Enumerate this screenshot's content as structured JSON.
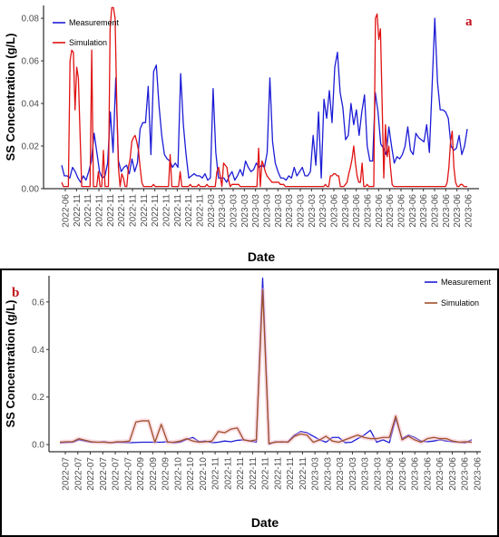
{
  "chart_data": [
    {
      "type": "line",
      "panel_label": "a",
      "xlabel": "Date",
      "ylabel": "SS Concentration (g/L)",
      "ylim": [
        0,
        0.086
      ],
      "yticks": [
        "0.00",
        "0.02",
        "0.04",
        "0.06",
        "0.08"
      ],
      "ytick_values": [
        0,
        0.02,
        0.04,
        0.06,
        0.08
      ],
      "x_tick_labels": [
        "2022-06",
        "2022-11",
        "2022-11",
        "2022-11",
        "2022-11",
        "2022-11",
        "2022-11",
        "2022-11",
        "2022-11",
        "2022-11",
        "2022-11",
        "2022-11",
        "2022-11",
        "2023-03",
        "2023-03",
        "2023-03",
        "2023-03",
        "2023-03",
        "2023-03",
        "2023-03",
        "2023-03",
        "2023-03",
        "2023-03",
        "2023-03",
        "2023-06",
        "2023-06",
        "2023-06",
        "2023-06",
        "2023-06",
        "2023-06",
        "2023-06",
        "2023-06",
        "2023-06",
        "2023-06",
        "2023-06",
        "2023-06",
        "2023-06"
      ],
      "legend_position": "top-left",
      "grid": false,
      "series": [
        {
          "name": "Measurement",
          "color": "#1c1cd6",
          "values": [
            0.011,
            0.006,
            0.006,
            0.005,
            0.01,
            0.008,
            0.005,
            0.003,
            0.006,
            0.004,
            0.008,
            0.013,
            0.026,
            0.017,
            0.008,
            0.005,
            0.006,
            0.012,
            0.036,
            0.017,
            0.052,
            0.013,
            0.008,
            0.01,
            0.011,
            0.007,
            0.014,
            0.008,
            0.012,
            0.028,
            0.031,
            0.031,
            0.048,
            0.016,
            0.055,
            0.058,
            0.039,
            0.025,
            0.016,
            0.014,
            0.013,
            0.01,
            0.012,
            0.01,
            0.054,
            0.03,
            0.016,
            0.005,
            0.006,
            0.007,
            0.006,
            0.006,
            0.005,
            0.007,
            0.004,
            0.005,
            0.047,
            0.017,
            0.005,
            0.005,
            0.005,
            0.003,
            0.006,
            0.008,
            0.004,
            0.006,
            0.009,
            0.006,
            0.013,
            0.01,
            0.008,
            0.009,
            0.012,
            0.01,
            0.011,
            0.01,
            0.017,
            0.052,
            0.022,
            0.012,
            0.008,
            0.005,
            0.005,
            0.004,
            0.006,
            0.005,
            0.01,
            0.006,
            0.008,
            0.01,
            0.006,
            0.006,
            0.008,
            0.025,
            0.011,
            0.036,
            0.005,
            0.042,
            0.033,
            0.046,
            0.031,
            0.057,
            0.064,
            0.045,
            0.038,
            0.023,
            0.025,
            0.04,
            0.03,
            0.037,
            0.025,
            0.036,
            0.044,
            0.02,
            0.013,
            0.013,
            0.045,
            0.036,
            0.021,
            0.019,
            0.016,
            0.029,
            0.02,
            0.012,
            0.015,
            0.014,
            0.016,
            0.02,
            0.029,
            0.018,
            0.016,
            0.026,
            0.024,
            0.023,
            0.022,
            0.03,
            0.017,
            0.048,
            0.08,
            0.05,
            0.037,
            0.037,
            0.036,
            0.033,
            0.02,
            0.018,
            0.019,
            0.025,
            0.016,
            0.02,
            0.028
          ]
        },
        {
          "name": "Simulation",
          "color": "#e01212",
          "values": [
            0.003,
            0.001,
            0.001,
            0.001,
            0.001,
            0.06,
            0.065,
            0.064,
            0.037,
            0.057,
            0.052,
            0.026,
            0.001,
            0.001,
            0.001,
            0.001,
            0.001,
            0.001,
            0.065,
            0.001,
            0.001,
            0.001,
            0.008,
            0.001,
            0.001,
            0.018,
            0.001,
            0.001,
            0.001,
            0.075,
            0.085,
            0.085,
            0.08,
            0.04,
            0.01,
            0.001,
            0.007,
            0.005,
            0.001,
            0.001,
            0.01,
            0.014,
            0.022,
            0.024,
            0.025,
            0.022,
            0.018,
            0.01,
            0.003,
            0.001,
            0.001,
            0.001,
            0.001,
            0.001,
            0.001,
            0.002,
            0.001,
            0.001,
            0.001,
            0.001,
            0.001,
            0.001,
            0.001,
            0.001,
            0.001,
            0.016,
            0.001,
            0.001,
            0.001,
            0.001,
            0.001,
            0.008,
            0.001,
            0.001,
            0.001,
            0.001,
            0.001,
            0.002,
            0.001,
            0.001,
            0.001,
            0.001,
            0.002,
            0.001,
            0.001,
            0.001,
            0.001,
            0.002,
            0.001,
            0.001,
            0.001,
            0.001,
            0.001,
            0.008,
            0.01,
            0.006,
            0.001,
            0.012,
            0.011,
            0.01,
            0.004,
            0.001,
            0.002,
            0.002,
            0.002,
            0.002,
            0.002,
            0.001,
            0.001,
            0.001,
            0.001,
            0.001,
            0.001,
            0.001,
            0.001,
            0.001,
            0.001,
            0.001,
            0.019,
            0.001,
            0.013,
            0.011,
            0.008,
            0.006,
            0.005,
            0.004,
            0.003,
            0.003,
            0.003,
            0.003,
            0.003,
            0.002,
            0.002,
            0.002,
            0.001,
            0.001,
            0.001,
            0.001,
            0.001,
            0.001,
            0.001,
            0.001,
            0.001,
            0.001,
            0.001,
            0.001,
            0.001,
            0.001,
            0.001,
            0.001,
            0.001,
            0.001,
            0.001,
            0.001,
            0.001,
            0.001,
            0.001,
            0.001,
            0.002,
            0.001,
            0.001,
            0.006,
            0.006,
            0.007,
            0.007,
            0.006,
            0.006,
            0.001,
            0.001,
            0.001,
            0.002,
            0.003,
            0.007,
            0.01,
            0.014,
            0.02,
            0.012,
            0.006,
            0.003,
            0.003,
            0.012,
            0.001,
            0.001,
            0.002,
            0.001,
            0.001,
            0.001,
            0.001,
            0.08,
            0.082,
            0.07,
            0.075,
            0.04,
            0.005,
            0.03,
            0.015,
            0.02,
            0.01,
            0.002,
            0.001,
            0.001,
            0.001,
            0.001,
            0.001,
            0.001,
            0.001,
            0.001,
            0.001,
            0.001,
            0.001,
            0.001,
            0.001,
            0.001,
            0.001,
            0.001,
            0.001,
            0.001,
            0.001,
            0.001,
            0.001,
            0.001,
            0.001,
            0.001,
            0.001,
            0.001,
            0.001,
            0.001,
            0.001,
            0.001,
            0.001,
            0.001,
            0.003,
            0.01,
            0.022,
            0.027,
            0.01,
            0.003,
            0.001,
            0.001,
            0.002,
            0.002,
            0.001,
            0.001,
            0.001
          ]
        }
      ]
    },
    {
      "type": "line",
      "panel_label": "b",
      "xlabel": "Date",
      "ylabel": "SS Concentration (g/L)",
      "ylim": [
        -0.03,
        0.71
      ],
      "yticks": [
        "0.0",
        "0.2",
        "0.4",
        "0.6"
      ],
      "ytick_values": [
        0,
        0.2,
        0.4,
        0.6
      ],
      "x_tick_labels": [
        "2022-07",
        "2022-07",
        "2022-07",
        "2022-07",
        "2022-07",
        "2022-07",
        "2022-09",
        "2022-09",
        "2022-09",
        "2022-10",
        "2022-10",
        "2022-10",
        "2022-11",
        "2022-11",
        "2022-11",
        "2022-11",
        "2022-11",
        "2022-11",
        "2022-11",
        "2022-11",
        "2023-03",
        "2023-03",
        "2023-03",
        "2023-03",
        "2023-03",
        "2023-03",
        "2023-06",
        "2023-06",
        "2023-06",
        "2023-06",
        "2023-06",
        "2023-06",
        "2023-06",
        "2023-06"
      ],
      "legend_position": "top-right",
      "grid": false,
      "series": [
        {
          "name": "Measurement",
          "color": "#1c1cd6",
          "values": [
            0.008,
            0.009,
            0.01,
            0.02,
            0.015,
            0.01,
            0.01,
            0.012,
            0.008,
            0.01,
            0.009,
            0.008,
            0.009,
            0.01,
            0.01,
            0.01,
            0.01,
            0.012,
            0.008,
            0.01,
            0.022,
            0.03,
            0.012,
            0.015,
            0.008,
            0.01,
            0.015,
            0.012,
            0.018,
            0.02,
            0.015,
            0.01,
            0.7,
            0.002,
            0.012,
            0.01,
            0.012,
            0.04,
            0.055,
            0.05,
            0.035,
            0.02,
            0.01,
            0.03,
            0.03,
            0.008,
            0.01,
            0.025,
            0.04,
            0.06,
            0.01,
            0.02,
            0.008,
            0.11,
            0.025,
            0.04,
            0.03,
            0.015,
            0.012,
            0.015,
            0.02,
            0.015,
            0.012,
            0.01,
            0.008,
            0.02
          ]
        },
        {
          "name": "Simulation",
          "color": "#a0502a",
          "values": [
            0.01,
            0.012,
            0.012,
            0.025,
            0.018,
            0.012,
            0.01,
            0.01,
            0.008,
            0.012,
            0.012,
            0.015,
            0.095,
            0.1,
            0.1,
            0.01,
            0.085,
            0.01,
            0.01,
            0.015,
            0.025,
            0.015,
            0.01,
            0.012,
            0.015,
            0.055,
            0.05,
            0.065,
            0.07,
            0.02,
            0.015,
            0.02,
            0.65,
            0.005,
            0.01,
            0.012,
            0.01,
            0.035,
            0.045,
            0.04,
            0.01,
            0.02,
            0.035,
            0.015,
            0.01,
            0.02,
            0.03,
            0.04,
            0.03,
            0.025,
            0.025,
            0.03,
            0.03,
            0.12,
            0.02,
            0.035,
            0.02,
            0.01,
            0.025,
            0.03,
            0.025,
            0.025,
            0.015,
            0.01,
            0.012,
            0.01
          ]
        }
      ]
    }
  ]
}
